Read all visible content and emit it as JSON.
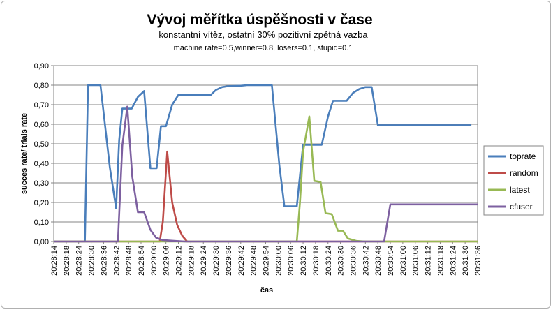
{
  "chart_data": {
    "type": "line",
    "title": "Vývoj měřítka úspěšnosti v čase",
    "subtitle": "konstantní vítěz, ostatní 30% pozitivní zpětná vazba",
    "subtitle2": "machine rate=0.5,winner=0.8, losers=0.1, stupid=0.1",
    "xlabel": "čas",
    "ylabel": "succes rate/ trials rate",
    "ylim": [
      0,
      0.9
    ],
    "yticks": [
      "0,00",
      "0,10",
      "0,20",
      "0,30",
      "0,40",
      "0,50",
      "0,60",
      "0,70",
      "0,80",
      "0,90"
    ],
    "x_tick_labels": [
      "20:28:14",
      "20:28:18",
      "20:28:24",
      "20:28:30",
      "20:28:36",
      "20:28:42",
      "20:28:48",
      "20:28:54",
      "20:29:00",
      "20:29:06",
      "20:29:12",
      "20:29:18",
      "20:29:24",
      "20:29:30",
      "20:29:36",
      "20:29:42",
      "20:29:48",
      "20:29:54",
      "20:30:00",
      "20:30:06",
      "20:30:12",
      "20:30:18",
      "20:30:24",
      "20:30:30",
      "20:30:36",
      "20:30:42",
      "20:30:48",
      "20:30:54",
      "20:31:00",
      "20:31:06",
      "20:31:12",
      "20:31:18",
      "20:31:24",
      "20:31:30",
      "20:31:36"
    ],
    "legend_position": "right",
    "grid": "horizontal",
    "series": [
      {
        "name": "toprate",
        "color": "#4a7ebb",
        "points": [
          [
            0,
            0
          ],
          [
            1,
            0
          ],
          [
            2,
            0
          ],
          [
            2.5,
            0
          ],
          [
            2.75,
            0.8
          ],
          [
            3.75,
            0.8
          ],
          [
            4.5,
            0.38
          ],
          [
            5,
            0.17
          ],
          [
            5.25,
            0.52
          ],
          [
            5.5,
            0.68
          ],
          [
            6.25,
            0.68
          ],
          [
            6.75,
            0.74
          ],
          [
            7.25,
            0.77
          ],
          [
            7.75,
            0.375
          ],
          [
            8.25,
            0.375
          ],
          [
            8.6,
            0.59
          ],
          [
            9,
            0.59
          ],
          [
            9.5,
            0.7
          ],
          [
            10,
            0.75
          ],
          [
            12.6,
            0.75
          ],
          [
            13,
            0.775
          ],
          [
            13.5,
            0.79
          ],
          [
            14,
            0.795
          ],
          [
            15,
            0.797
          ],
          [
            15.5,
            0.8
          ],
          [
            17.5,
            0.8
          ],
          [
            18.1,
            0.39
          ],
          [
            18.5,
            0.18
          ],
          [
            19.5,
            0.18
          ],
          [
            20,
            0.495
          ],
          [
            21.5,
            0.495
          ],
          [
            22,
            0.64
          ],
          [
            22.4,
            0.72
          ],
          [
            23.5,
            0.72
          ],
          [
            24,
            0.76
          ],
          [
            24.5,
            0.78
          ],
          [
            25,
            0.79
          ],
          [
            25.5,
            0.79
          ],
          [
            26,
            0.595
          ],
          [
            33.5,
            0.595
          ]
        ]
      },
      {
        "name": "random",
        "color": "#be4b48",
        "points": [
          [
            0,
            0
          ],
          [
            8.5,
            0
          ],
          [
            8.75,
            0.1
          ],
          [
            9.1,
            0.46
          ],
          [
            9.5,
            0.2
          ],
          [
            9.9,
            0.085
          ],
          [
            10.3,
            0.03
          ],
          [
            10.7,
            0
          ],
          [
            34,
            0
          ]
        ]
      },
      {
        "name": "latest",
        "color": "#98b954",
        "points": [
          [
            0,
            0
          ],
          [
            18.5,
            0
          ],
          [
            19.5,
            0
          ],
          [
            19.75,
            0.2
          ],
          [
            20,
            0.46
          ],
          [
            20.5,
            0.64
          ],
          [
            20.9,
            0.31
          ],
          [
            21.4,
            0.305
          ],
          [
            21.8,
            0.145
          ],
          [
            22.3,
            0.14
          ],
          [
            22.8,
            0.055
          ],
          [
            23.2,
            0.055
          ],
          [
            23.6,
            0.015
          ],
          [
            24.3,
            0.003
          ],
          [
            25,
            0
          ],
          [
            34,
            0
          ]
        ]
      },
      {
        "name": "cfuser",
        "color": "#7d60a0",
        "points": [
          [
            0,
            0
          ],
          [
            5.15,
            0
          ],
          [
            5.5,
            0.49
          ],
          [
            5.9,
            0.69
          ],
          [
            6.3,
            0.33
          ],
          [
            6.75,
            0.15
          ],
          [
            7.25,
            0.15
          ],
          [
            7.75,
            0.06
          ],
          [
            8.2,
            0.02
          ],
          [
            8.7,
            0.008
          ],
          [
            9.25,
            0.005
          ],
          [
            10.5,
            0
          ],
          [
            26.5,
            0
          ],
          [
            27,
            0.19
          ],
          [
            34,
            0.19
          ]
        ]
      }
    ]
  }
}
